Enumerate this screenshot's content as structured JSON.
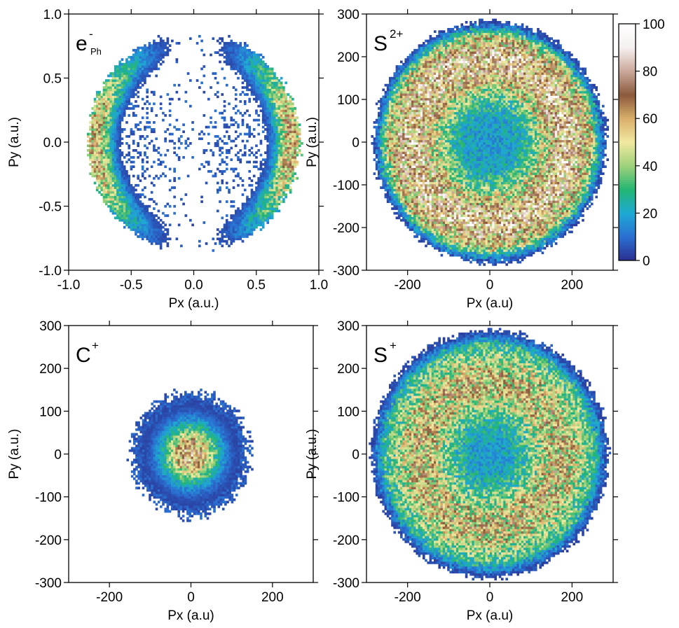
{
  "chart_data": [
    {
      "type": "heatmap",
      "id": "e_ph",
      "label": "e",
      "label_sup": "-",
      "label_sub": "Ph",
      "xlabel": "Px (a.u.)",
      "ylabel": "Py (a.u.)",
      "xlim": [
        -1.0,
        1.0
      ],
      "ylim": [
        -1.0,
        1.0
      ],
      "xticks": [
        -1.0,
        -0.5,
        0.0,
        0.5,
        1.0
      ],
      "xtick_labels": [
        "-1.0",
        "-0.5",
        "0.0",
        "0.5",
        "1.0"
      ],
      "yticks": [
        -1.0,
        -0.5,
        0.0,
        0.5,
        1.0
      ],
      "ytick_labels": [
        "-1.0",
        "-0.5",
        "0.0",
        "0.5",
        "1.0"
      ],
      "distribution": {
        "shape": "dipole-ring",
        "radius": 0.85,
        "peak_value": 60,
        "peak_positions": "near Px = ±0.8, Py = 0"
      }
    },
    {
      "type": "heatmap",
      "id": "s2plus",
      "label": "S",
      "label_sup": "2+",
      "label_sub": "",
      "xlabel": "Px (a.u)",
      "ylabel": "Py (a.u.)",
      "xlim": [
        -300,
        300
      ],
      "ylim": [
        -300,
        300
      ],
      "xticks": [
        -200,
        0,
        200
      ],
      "xtick_labels": [
        "-200",
        "0",
        "200"
      ],
      "yticks": [
        -300,
        -200,
        -100,
        0,
        100,
        200,
        300
      ],
      "ytick_labels": [
        "-300",
        "-200",
        "-100",
        "0",
        "100",
        "200",
        "300"
      ],
      "distribution": {
        "shape": "disc-with-ring",
        "radius": 285,
        "peak_value": 70,
        "peak_ring_radius": 190
      }
    },
    {
      "type": "heatmap",
      "id": "cplus",
      "label": "C",
      "label_sup": "+",
      "label_sub": "",
      "xlabel": "Px (a.u)",
      "ylabel": "Py (a.u.)",
      "xlim": [
        -300,
        300
      ],
      "ylim": [
        -300,
        300
      ],
      "xticks": [
        -200,
        0,
        200
      ],
      "xtick_labels": [
        "-200",
        "0",
        "200"
      ],
      "yticks": [
        -300,
        -200,
        -100,
        0,
        100,
        200,
        300
      ],
      "ytick_labels": [
        "-300",
        "-200",
        "-100",
        "0",
        "100",
        "200",
        "300"
      ],
      "distribution": {
        "shape": "gaussian-disc",
        "radius": 150,
        "peak_value": 70,
        "peak_position": "center"
      }
    },
    {
      "type": "heatmap",
      "id": "splus",
      "label": "S",
      "label_sup": "+",
      "label_sub": "",
      "xlabel": "Px (a.u)",
      "ylabel": "Py (a.u.)",
      "xlim": [
        -300,
        300
      ],
      "ylim": [
        -300,
        300
      ],
      "xticks": [
        -200,
        0,
        200
      ],
      "xtick_labels": [
        "-200",
        "0",
        "200"
      ],
      "yticks": [
        -300,
        -200,
        -100,
        0,
        100,
        200,
        300
      ],
      "ytick_labels": [
        "-300",
        "-200",
        "-100",
        "0",
        "100",
        "200",
        "300"
      ],
      "distribution": {
        "shape": "disc-with-ring",
        "radius": 290,
        "peak_value": 55,
        "peak_ring_radius": 170
      }
    }
  ],
  "colorbar": {
    "min": 0,
    "max": 100,
    "ticks": [
      0,
      20,
      40,
      60,
      80,
      100
    ],
    "tick_labels": [
      "0",
      "20",
      "40",
      "60",
      "80",
      "100"
    ],
    "colors": [
      "#2b2f8f",
      "#2a6fd1",
      "#1fa9d4",
      "#22b573",
      "#9fd17a",
      "#f0e9a0",
      "#d9b06b",
      "#8b5a3c",
      "#caa89a",
      "#f5f0ef",
      "#ffffff"
    ]
  }
}
